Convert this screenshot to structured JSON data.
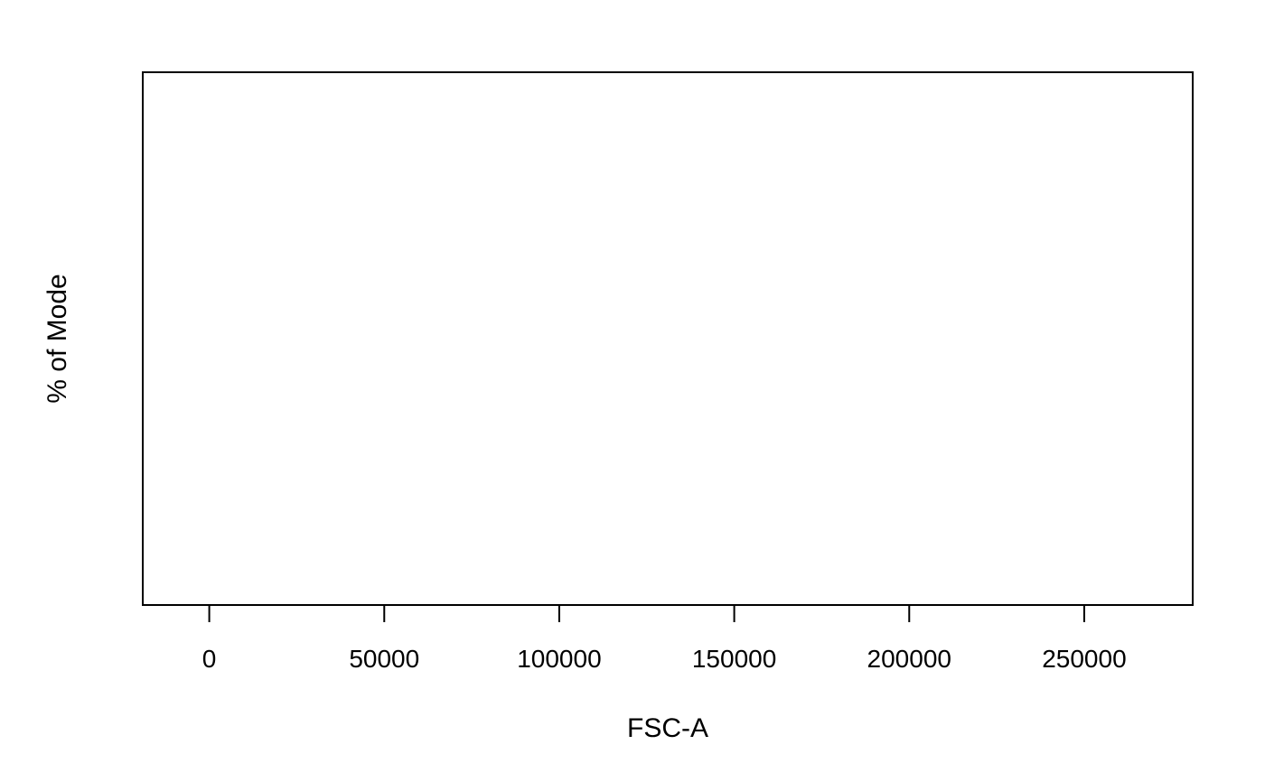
{
  "chart_data": {
    "type": "histogram",
    "title": "",
    "xlabel": "FSC-A",
    "ylabel": "% of Mode",
    "xlim": [
      -19000,
      281000
    ],
    "x_ticks": [
      0,
      50000,
      100000,
      150000,
      200000,
      250000
    ],
    "x_tick_labels": [
      "0",
      "50000",
      "100000",
      "150000",
      "200000",
      "250000"
    ],
    "y_ticks": [],
    "series": [],
    "grid": false,
    "legend": "none",
    "colors": {
      "axis": "#000000",
      "background": "#ffffff"
    }
  }
}
